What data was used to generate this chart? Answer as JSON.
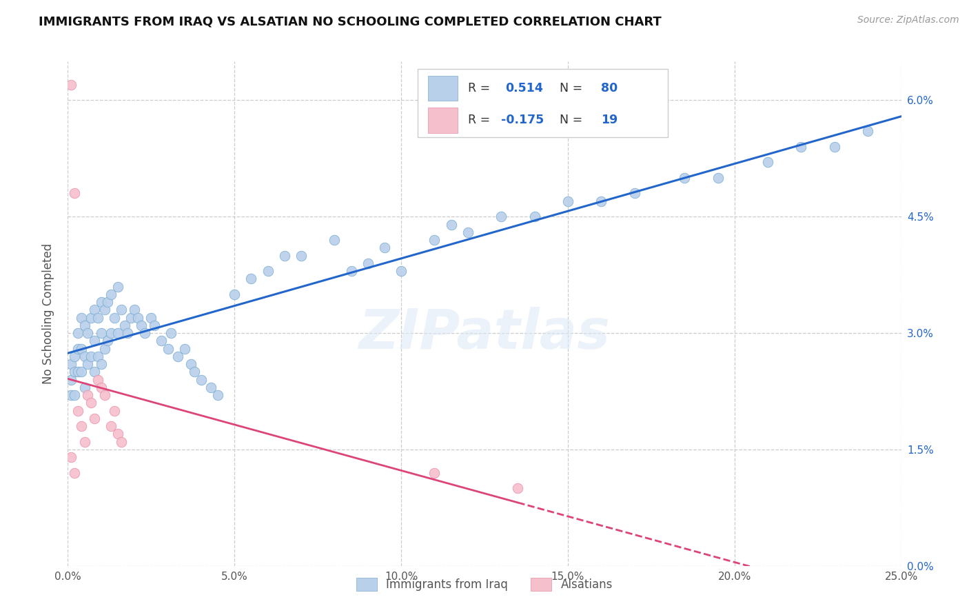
{
  "title": "IMMIGRANTS FROM IRAQ VS ALSATIAN NO SCHOOLING COMPLETED CORRELATION CHART",
  "source": "Source: ZipAtlas.com",
  "ylabel_label": "No Schooling Completed",
  "legend_labels": [
    "Immigrants from Iraq",
    "Alsatians"
  ],
  "R_iraq": 0.514,
  "N_iraq": 80,
  "R_alsatian": -0.175,
  "N_alsatian": 19,
  "blue_dot_color": "#b8d0ea",
  "pink_dot_color": "#f5bfcc",
  "blue_edge_color": "#7aaad0",
  "pink_edge_color": "#e890a8",
  "blue_line_color": "#2266cc",
  "pink_line_color": "#dd4477",
  "watermark": "ZIPatlas",
  "xlim": [
    0,
    0.25
  ],
  "ylim": [
    0,
    0.065
  ],
  "x_ticks": [
    0.0,
    0.05,
    0.1,
    0.15,
    0.2,
    0.25
  ],
  "x_tick_labels": [
    "0.0%",
    "5.0%",
    "10.0%",
    "15.0%",
    "20.0%",
    "25.0%"
  ],
  "y_ticks": [
    0.0,
    0.015,
    0.03,
    0.045,
    0.06
  ],
  "y_tick_labels_right": [
    "0.0%",
    "1.5%",
    "3.0%",
    "4.5%",
    "6.0%"
  ],
  "iraq_x": [
    0.001,
    0.001,
    0.001,
    0.002,
    0.002,
    0.002,
    0.003,
    0.003,
    0.003,
    0.004,
    0.004,
    0.004,
    0.005,
    0.005,
    0.005,
    0.006,
    0.006,
    0.007,
    0.007,
    0.008,
    0.008,
    0.008,
    0.009,
    0.009,
    0.01,
    0.01,
    0.01,
    0.011,
    0.011,
    0.012,
    0.012,
    0.013,
    0.013,
    0.014,
    0.015,
    0.015,
    0.016,
    0.017,
    0.018,
    0.019,
    0.02,
    0.021,
    0.022,
    0.023,
    0.025,
    0.026,
    0.028,
    0.03,
    0.031,
    0.033,
    0.035,
    0.037,
    0.038,
    0.04,
    0.043,
    0.045,
    0.05,
    0.055,
    0.06,
    0.065,
    0.07,
    0.08,
    0.085,
    0.09,
    0.095,
    0.1,
    0.11,
    0.115,
    0.12,
    0.13,
    0.14,
    0.15,
    0.16,
    0.17,
    0.185,
    0.195,
    0.21,
    0.22,
    0.23,
    0.24
  ],
  "iraq_y": [
    0.026,
    0.024,
    0.022,
    0.027,
    0.025,
    0.022,
    0.03,
    0.028,
    0.025,
    0.032,
    0.028,
    0.025,
    0.031,
    0.027,
    0.023,
    0.03,
    0.026,
    0.032,
    0.027,
    0.033,
    0.029,
    0.025,
    0.032,
    0.027,
    0.034,
    0.03,
    0.026,
    0.033,
    0.028,
    0.034,
    0.029,
    0.035,
    0.03,
    0.032,
    0.036,
    0.03,
    0.033,
    0.031,
    0.03,
    0.032,
    0.033,
    0.032,
    0.031,
    0.03,
    0.032,
    0.031,
    0.029,
    0.028,
    0.03,
    0.027,
    0.028,
    0.026,
    0.025,
    0.024,
    0.023,
    0.022,
    0.035,
    0.037,
    0.038,
    0.04,
    0.04,
    0.042,
    0.038,
    0.039,
    0.041,
    0.038,
    0.042,
    0.044,
    0.043,
    0.045,
    0.045,
    0.047,
    0.047,
    0.048,
    0.05,
    0.05,
    0.052,
    0.054,
    0.054,
    0.056
  ],
  "alsatian_x": [
    0.001,
    0.001,
    0.002,
    0.002,
    0.003,
    0.004,
    0.005,
    0.006,
    0.007,
    0.008,
    0.009,
    0.01,
    0.011,
    0.013,
    0.014,
    0.015,
    0.016,
    0.11,
    0.135
  ],
  "alsatian_y": [
    0.062,
    0.014,
    0.048,
    0.012,
    0.02,
    0.018,
    0.016,
    0.022,
    0.021,
    0.019,
    0.024,
    0.023,
    0.022,
    0.018,
    0.02,
    0.017,
    0.016,
    0.012,
    0.01
  ],
  "blue_line_x0": 0.0,
  "blue_line_y0": 0.022,
  "blue_line_x1": 0.25,
  "blue_line_y1": 0.056,
  "pink_line_x0": 0.0,
  "pink_line_y0": 0.022,
  "pink_line_x1": 0.25,
  "pink_line_y1": 0.006
}
